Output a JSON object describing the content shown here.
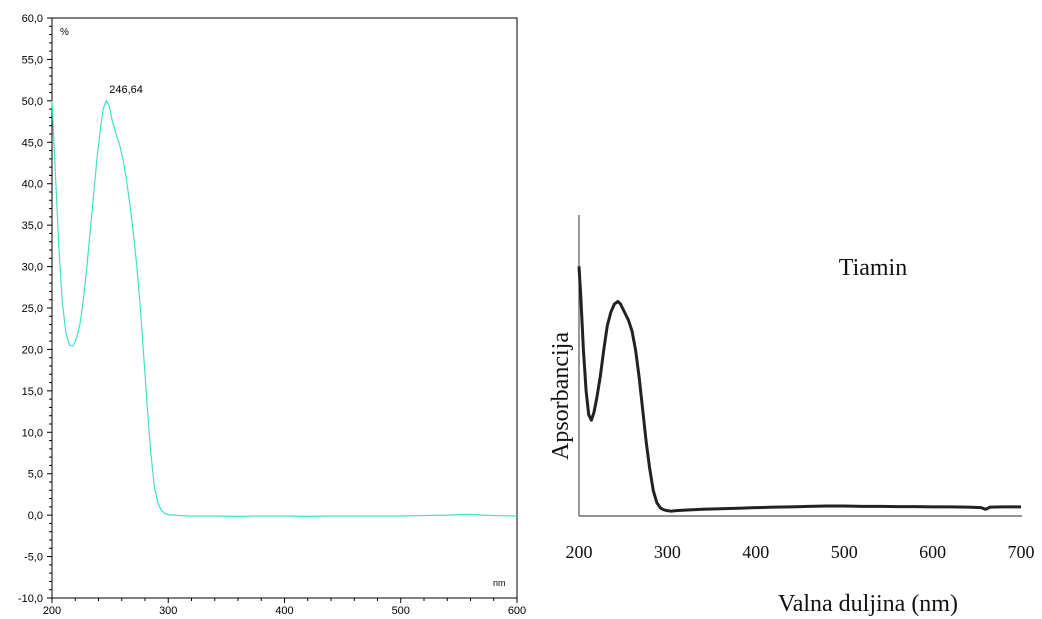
{
  "chart_data": [
    {
      "type": "line",
      "xlabel": "nm",
      "ylabel": "%",
      "xlim": [
        200,
        600
      ],
      "ylim": [
        -10,
        60
      ],
      "x_ticks": [
        "200",
        "300",
        "400",
        "500",
        "600"
      ],
      "y_ticks": [
        "-10,0",
        "-5,0",
        "0,0",
        "5,0",
        "10,0",
        "15,0",
        "20,0",
        "25,0",
        "30,0",
        "35,0",
        "40,0",
        "45,0",
        "50,0",
        "55,0",
        "60,0"
      ],
      "grid": false,
      "annotations": [
        {
          "text": "246,64",
          "x": 246.64,
          "y": 50.0
        }
      ],
      "line_color": "#40e0c8",
      "series": [
        {
          "x": [
            200,
            203,
            206,
            209,
            212,
            215,
            218,
            221,
            224,
            227,
            230,
            233,
            236,
            239,
            242,
            244,
            246.64,
            249,
            252,
            255,
            258,
            261,
            264,
            267,
            270,
            273,
            276,
            279,
            282,
            285,
            288,
            291,
            294,
            297,
            300,
            305,
            310,
            320,
            340,
            360,
            380,
            400,
            420,
            440,
            460,
            480,
            500,
            520,
            540,
            560,
            570,
            580,
            600
          ],
          "y": [
            50.0,
            41.0,
            32.0,
            25.5,
            22.0,
            20.5,
            20.4,
            21.3,
            23.0,
            26.0,
            30.0,
            34.5,
            39.0,
            43.5,
            47.0,
            49.0,
            50.0,
            49.5,
            47.5,
            46.0,
            44.8,
            43.0,
            40.5,
            37.5,
            34.0,
            30.0,
            25.0,
            19.0,
            13.0,
            7.5,
            3.5,
            1.5,
            0.6,
            0.2,
            0.05,
            0.0,
            -0.05,
            -0.1,
            -0.1,
            -0.15,
            -0.1,
            -0.1,
            -0.15,
            -0.1,
            -0.1,
            -0.1,
            -0.1,
            -0.05,
            0.0,
            0.1,
            0.0,
            -0.05,
            -0.1
          ]
        }
      ]
    },
    {
      "type": "line",
      "title": "Tiamin",
      "xlabel": "Valna duljina (nm)",
      "ylabel": "Apsorbancija",
      "xlim": [
        200,
        700
      ],
      "ylim": [
        0,
        100
      ],
      "x_ticks": [
        "200",
        "300",
        "400",
        "500",
        "600",
        "700"
      ],
      "grid": false,
      "line_color": "#222222",
      "series": [
        {
          "x": [
            200,
            202,
            205,
            208,
            211,
            214,
            217,
            220,
            224,
            228,
            232,
            236,
            240,
            244,
            247,
            250,
            253,
            256,
            260,
            264,
            268,
            272,
            276,
            280,
            284,
            288,
            292,
            296,
            300,
            304,
            310,
            320,
            340,
            360,
            380,
            400,
            420,
            440,
            460,
            480,
            500,
            520,
            540,
            560,
            580,
            600,
            620,
            640,
            655,
            660,
            665,
            680,
            700
          ],
          "y": [
            91,
            80,
            60,
            45,
            36,
            34,
            37,
            42,
            50,
            60,
            69,
            74,
            77,
            78,
            77,
            75,
            73,
            71,
            67,
            60,
            50,
            38,
            26,
            16,
            8,
            3.5,
            1.5,
            0.8,
            0.5,
            0.3,
            0.5,
            0.7,
            1.0,
            1.2,
            1.4,
            1.6,
            1.8,
            1.9,
            2.1,
            2.2,
            2.2,
            2.1,
            2.1,
            2.0,
            2.0,
            1.9,
            1.9,
            1.8,
            1.6,
            1.0,
            1.8,
            1.9,
            1.9
          ]
        }
      ]
    }
  ]
}
